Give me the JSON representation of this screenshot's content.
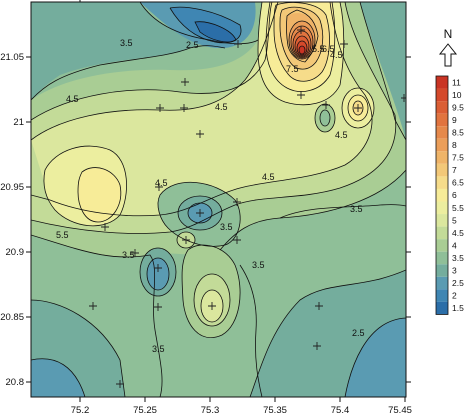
{
  "map": {
    "x_ticks": [
      "75.2",
      "75.25",
      "75.3",
      "75.35",
      "75.4",
      "75.45"
    ],
    "y_ticks": [
      "21.05",
      "21",
      "20.95",
      "20.9",
      "20.85",
      "20.8"
    ],
    "contour_labels": [
      "3.5",
      "2.5",
      "4.5",
      "5.5",
      "7.5",
      "6.5",
      "4.5",
      "4.5",
      "4.5",
      "4.5",
      "4.5",
      "5.5",
      "3.5",
      "3.5",
      "3.5",
      "3.5",
      "3.5",
      "2.5"
    ],
    "colors": {
      "c1_5": "#2b6ea8",
      "c2": "#3f86b3",
      "c2_5": "#5a9bb2",
      "c3": "#74ad9d",
      "c3_5": "#8fbf98",
      "c4": "#a9cd94",
      "c4_5": "#c3db98",
      "c5": "#dbe79e",
      "c5_5": "#ecee9f",
      "c6": "#f7ec98",
      "c6_5": "#f6dc8a",
      "c7": "#f3c878",
      "c7_5": "#efb468",
      "c8": "#eb9e59",
      "c8_5": "#e6894b",
      "c9": "#e1743f",
      "c9_5": "#db5e34",
      "c10": "#d4492b",
      "c11": "#c93424"
    }
  },
  "north_arrow": {
    "label": "N"
  },
  "legend": {
    "items": [
      {
        "label": "11",
        "color": "#c93424"
      },
      {
        "label": "10",
        "color": "#d4492b"
      },
      {
        "label": "9.5",
        "color": "#db5e34"
      },
      {
        "label": "9",
        "color": "#e1743f"
      },
      {
        "label": "8.5",
        "color": "#e6894b"
      },
      {
        "label": "8",
        "color": "#eb9e59"
      },
      {
        "label": "7.5",
        "color": "#efb468"
      },
      {
        "label": "7",
        "color": "#f3c878"
      },
      {
        "label": "6.5",
        "color": "#f6dc8a"
      },
      {
        "label": "6",
        "color": "#f7ec98"
      },
      {
        "label": "5.5",
        "color": "#ecee9f"
      },
      {
        "label": "5",
        "color": "#dbe79e"
      },
      {
        "label": "4.5",
        "color": "#c3db98"
      },
      {
        "label": "4",
        "color": "#a9cd94"
      },
      {
        "label": "3.5",
        "color": "#8fbf98"
      },
      {
        "label": "3",
        "color": "#74ad9d"
      },
      {
        "label": "2.5",
        "color": "#5a9bb2"
      },
      {
        "label": "2",
        "color": "#3f86b3"
      },
      {
        "label": "1.5",
        "color": "#2b6ea8"
      }
    ]
  }
}
